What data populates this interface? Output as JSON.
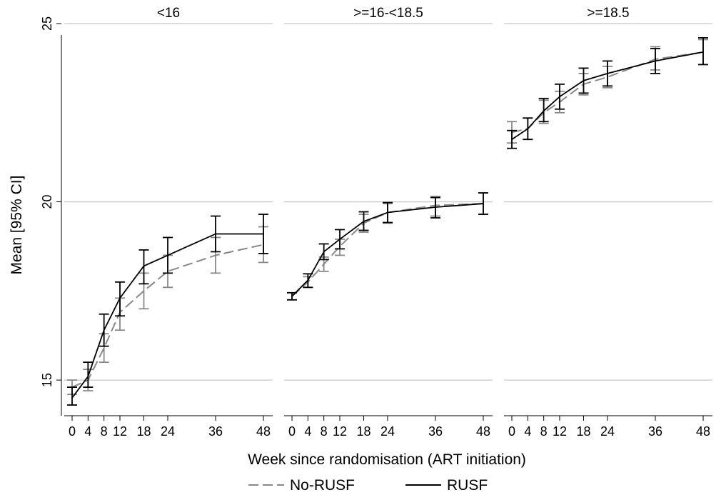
{
  "chart_data": {
    "type": "line",
    "xlabel": "Week since randomisation (ART initiation)",
    "ylabel": "Mean [95% CI]",
    "x": [
      0,
      4,
      8,
      12,
      18,
      24,
      36,
      48
    ],
    "xlim": [
      0,
      48
    ],
    "ylim": [
      14,
      25
    ],
    "yticks": [
      15,
      20,
      25
    ],
    "grid": true,
    "legend_position": "bottom",
    "panels": [
      {
        "title": "<16",
        "series": [
          {
            "name": "No-RUSF",
            "style": "dashed",
            "color": "#888888",
            "values": [
              14.8,
              15.0,
              15.9,
              16.9,
              17.5,
              18.05,
              18.5,
              18.8
            ],
            "ci": [
              [
                14.6,
                15.0
              ],
              [
                14.7,
                15.3
              ],
              [
                15.5,
                16.3
              ],
              [
                16.4,
                17.3
              ],
              [
                17.0,
                18.0
              ],
              [
                17.6,
                18.5
              ],
              [
                18.0,
                19.0
              ],
              [
                18.3,
                19.3
              ]
            ]
          },
          {
            "name": "RUSF",
            "style": "solid",
            "color": "#000000",
            "values": [
              14.5,
              15.1,
              16.4,
              17.3,
              18.2,
              18.5,
              19.1,
              19.1
            ],
            "ci": [
              [
                14.3,
                14.8
              ],
              [
                14.8,
                15.5
              ],
              [
                15.95,
                16.85
              ],
              [
                16.8,
                17.75
              ],
              [
                17.7,
                18.65
              ],
              [
                18.0,
                19.0
              ],
              [
                18.6,
                19.6
              ],
              [
                18.55,
                19.65
              ]
            ]
          }
        ]
      },
      {
        "title": ">=16-<18.5",
        "series": [
          {
            "name": "No-RUSF",
            "style": "dashed",
            "color": "#888888",
            "values": [
              17.35,
              17.75,
              18.25,
              18.75,
              19.4,
              19.7,
              19.9,
              19.95
            ],
            "ci": [
              [
                17.25,
                17.45
              ],
              [
                17.6,
                17.9
              ],
              [
                18.05,
                18.45
              ],
              [
                18.5,
                18.95
              ],
              [
                19.15,
                19.65
              ],
              [
                19.4,
                19.95
              ],
              [
                19.6,
                20.15
              ],
              [
                19.65,
                20.25
              ]
            ]
          },
          {
            "name": "RUSF",
            "style": "solid",
            "color": "#000000",
            "values": [
              17.35,
              17.8,
              18.6,
              18.95,
              19.45,
              19.7,
              19.85,
              19.95
            ],
            "ci": [
              [
                17.25,
                17.45
              ],
              [
                17.6,
                17.98
              ],
              [
                18.38,
                18.82
              ],
              [
                18.68,
                19.22
              ],
              [
                19.2,
                19.72
              ],
              [
                19.42,
                19.98
              ],
              [
                19.55,
                20.12
              ],
              [
                19.65,
                20.25
              ]
            ]
          }
        ]
      },
      {
        "title": ">=18.5",
        "series": [
          {
            "name": "No-RUSF",
            "style": "dashed",
            "color": "#888888",
            "values": [
              21.95,
              22.05,
              22.5,
              22.8,
              23.3,
              23.5,
              24.0,
              24.2
            ],
            "ci": [
              [
                21.65,
                22.25
              ],
              [
                21.75,
                22.35
              ],
              [
                22.2,
                22.85
              ],
              [
                22.5,
                23.1
              ],
              [
                23.0,
                23.6
              ],
              [
                23.2,
                23.8
              ],
              [
                23.7,
                24.35
              ],
              [
                23.85,
                24.55
              ]
            ]
          },
          {
            "name": "RUSF",
            "style": "solid",
            "color": "#000000",
            "values": [
              21.75,
              22.05,
              22.55,
              22.95,
              23.4,
              23.6,
              23.95,
              24.2
            ],
            "ci": [
              [
                21.5,
                22.0
              ],
              [
                21.75,
                22.35
              ],
              [
                22.25,
                22.9
              ],
              [
                22.6,
                23.3
              ],
              [
                23.05,
                23.75
              ],
              [
                23.25,
                23.95
              ],
              [
                23.6,
                24.3
              ],
              [
                23.85,
                24.6
              ]
            ]
          }
        ]
      }
    ]
  }
}
